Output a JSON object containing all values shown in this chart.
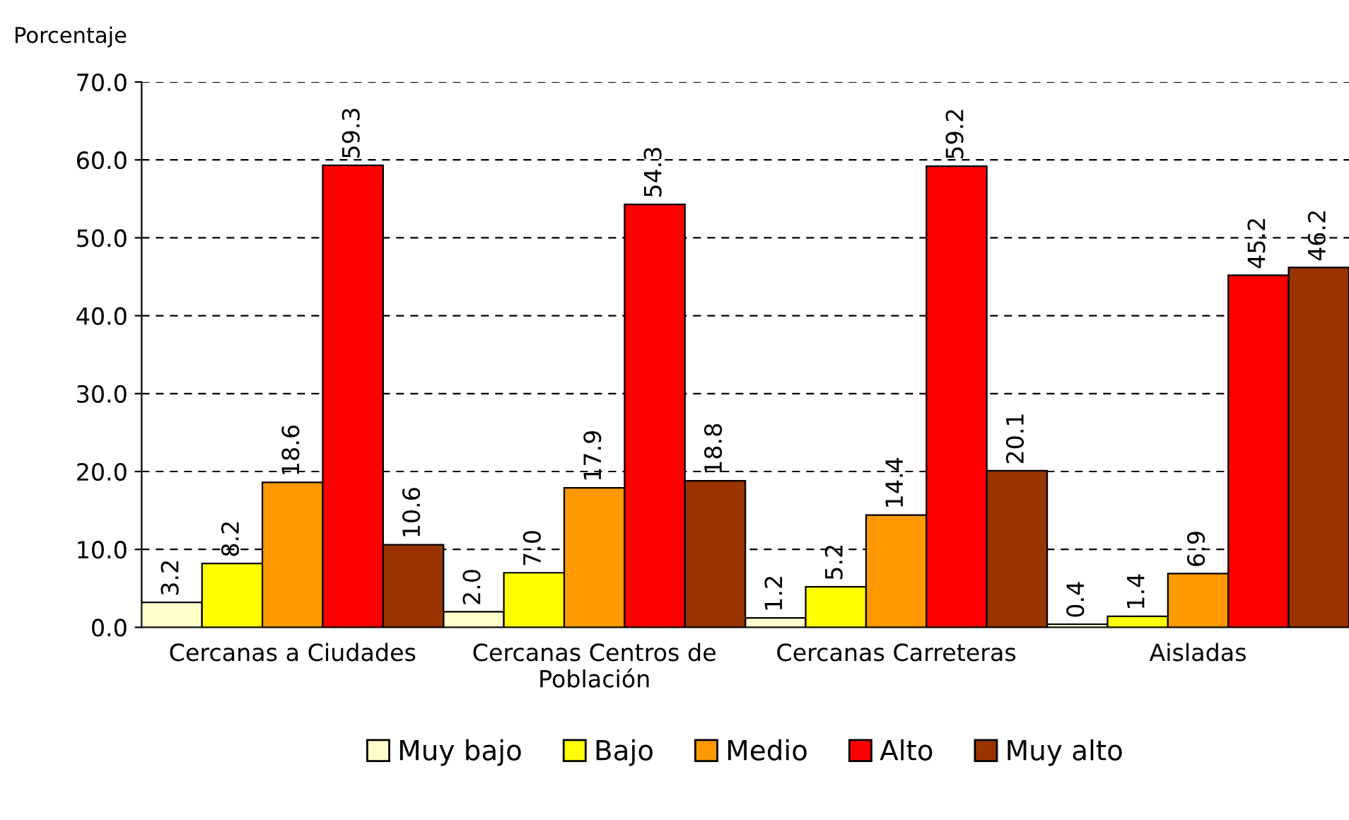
{
  "chart_data": {
    "type": "bar",
    "ylabel": "Porcentaje",
    "categories": [
      "Cercanas a Ciudades",
      "Cercanas Centros de\nPoblación",
      "Cercanas Carreteras",
      "Aisladas"
    ],
    "series": [
      {
        "name": "Muy bajo",
        "color": "#ffffcc",
        "values": [
          3.2,
          2.0,
          1.2,
          0.4
        ],
        "value_labels": [
          "3.2",
          "2.0",
          "1.2",
          "0.4"
        ]
      },
      {
        "name": "Bajo",
        "color": "#ffff00",
        "values": [
          8.2,
          7.0,
          5.2,
          1.4
        ],
        "value_labels": [
          "8.2",
          "7.0",
          "5.2",
          "1.4"
        ]
      },
      {
        "name": "Medio",
        "color": "#ff9900",
        "values": [
          18.6,
          17.9,
          14.4,
          6.9
        ],
        "value_labels": [
          "18.6",
          "17.9",
          "14.4",
          "6.9"
        ]
      },
      {
        "name": "Alto",
        "color": "#ff0000",
        "values": [
          59.3,
          54.3,
          59.2,
          45.2
        ],
        "value_labels": [
          "59.3",
          "54.3",
          "59.2",
          "45.2"
        ]
      },
      {
        "name": "Muy alto",
        "color": "#993300",
        "values": [
          10.6,
          18.8,
          20.1,
          46.2
        ],
        "value_labels": [
          "10.6",
          "18.8",
          "20.1",
          "46.2"
        ]
      }
    ],
    "ylim": [
      0,
      70
    ],
    "yticks": [
      {
        "value": 0,
        "label": "0.0"
      },
      {
        "value": 10,
        "label": "10.0"
      },
      {
        "value": 20,
        "label": "20.0"
      },
      {
        "value": 30,
        "label": "30.0"
      },
      {
        "value": 40,
        "label": "40.0"
      },
      {
        "value": 50,
        "label": "50.0"
      },
      {
        "value": 60,
        "label": "60.0"
      },
      {
        "value": 70,
        "label": "70.0"
      }
    ],
    "grid": "y",
    "legend": "bottom"
  }
}
